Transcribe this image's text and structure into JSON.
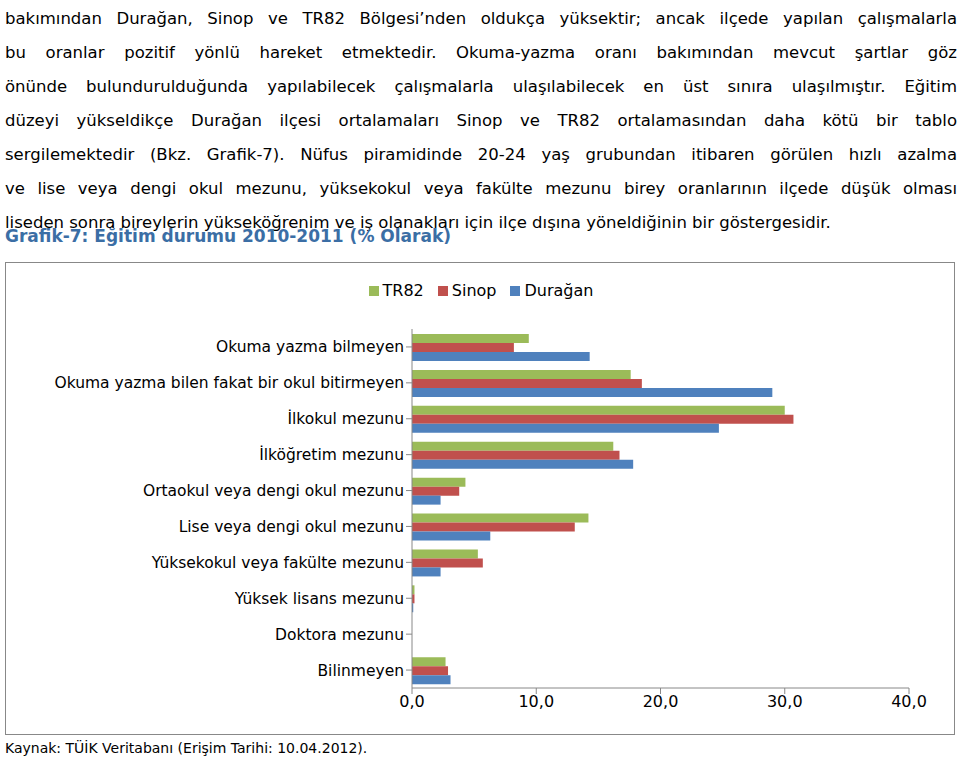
{
  "text": [
    "bakımından Durağan, Sinop ve TR82 Bölgesi’nden oldukça yüksektir; ancak ilçede yapılan çalışmalarla",
    "bu oranlar pozitif yönlü hareket etmektedir. Okuma-yazma oranı bakımından mevcut şartlar göz",
    "önünde bulundurulduğunda yapılabilecek çalışmalarla ulaşılabilecek en üst sınıra ulaşılmıştır. Eğitim",
    "düzeyi yükseldikçe Durağan ilçesi ortalamaları Sinop ve TR82 ortalamasından daha kötü bir tablo",
    "sergilemektedir (Bkz. Grafik-7). Nüfus piramidinde 20-24 yaş grubundan itibaren görülen hızlı azalma",
    "ve lise veya dengi okul mezunu, yüksekokul veya fakülte mezunu birey oranlarının ilçede düşük olması",
    "liseden sonra bireylerin yükseköğrenim ve iş olanakları için ilçe dışına yöneldiğinin bir göstergesidir."
  ],
  "chart_title": "Grafik-7: Eğitim durumu 2010-2011 (% Olarak)",
  "chart_data": {
    "type": "bar",
    "orientation": "horizontal",
    "categories": [
      "Okuma yazma bilmeyen",
      "Okuma yazma bilen fakat bir okul bitirmeyen",
      "İlkokul mezunu",
      "İlköğretim mezunu",
      "Ortaokul veya dengi okul mezunu",
      "Lise veya dengi okul mezunu",
      "Yüksekokul veya fakülte mezunu",
      "Yüksek lisans mezunu",
      "Doktora mezunu",
      "Bilinmeyen"
    ],
    "series": [
      {
        "name": "TR82",
        "color": "#9bbb59",
        "values": [
          9.4,
          17.6,
          30.0,
          16.2,
          4.3,
          14.2,
          5.3,
          0.2,
          0.0,
          2.7
        ]
      },
      {
        "name": "Sinop",
        "color": "#c0504d",
        "values": [
          8.2,
          18.5,
          30.7,
          16.7,
          3.8,
          13.1,
          5.7,
          0.2,
          0.0,
          2.9
        ]
      },
      {
        "name": "Durağan",
        "color": "#4f81bd",
        "values": [
          14.3,
          29.0,
          24.7,
          17.8,
          2.3,
          6.3,
          2.3,
          0.1,
          0.0,
          3.1
        ]
      }
    ],
    "xlim": [
      0,
      40
    ],
    "xticks": [
      {
        "value": 0,
        "label": "0,0"
      },
      {
        "value": 10,
        "label": "10,0"
      },
      {
        "value": 20,
        "label": "20,0"
      },
      {
        "value": 30,
        "label": "30,0"
      },
      {
        "value": 40,
        "label": "40,0"
      }
    ],
    "legend": "top",
    "grid": false
  },
  "source": "Kaynak: TÜİK Veritabanı (Erişim Tarihi: 10.04.2012)."
}
